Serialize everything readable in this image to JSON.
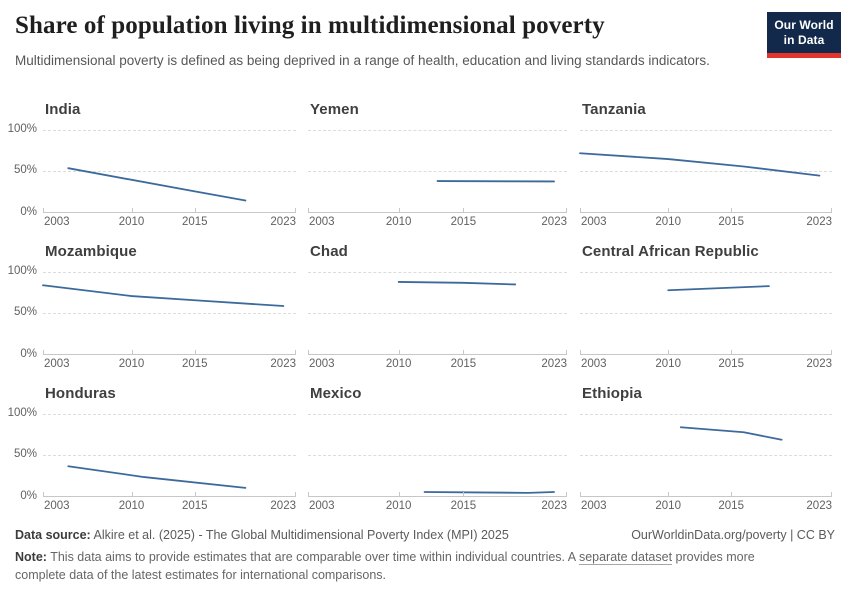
{
  "header": {
    "title": "Share of population living in multidimensional poverty",
    "subtitle": "Multidimensional poverty is defined as being deprived in a range of health, education and living standards indicators.",
    "logo_line1": "Our World",
    "logo_line2": "in Data",
    "logo_bg": "#12294b",
    "logo_accent": "#e0342c"
  },
  "chart_data": {
    "type": "line",
    "layout": "3x3 small multiples, one line series per panel",
    "x_range": [
      2003,
      2023
    ],
    "x_ticks": [
      2003,
      2010,
      2015,
      2023
    ],
    "x_tick_labels": [
      "2003",
      "2010",
      "2015",
      "2023"
    ],
    "y_range": [
      0,
      100
    ],
    "y_ticks": [
      0,
      50,
      100
    ],
    "y_axis": {
      "top": "100%",
      "mid": "50%",
      "bottom": "0%"
    },
    "grid": "dashed horizontal gridlines at 50% and 100%, solid axis at 0%",
    "legend": "none",
    "line_color": "#3d6a9c",
    "panels": [
      {
        "country": "India",
        "points": [
          [
            2005,
            54
          ],
          [
            2015,
            26
          ],
          [
            2019,
            15
          ]
        ]
      },
      {
        "country": "Yemen",
        "points": [
          [
            2013,
            38.5
          ],
          [
            2022,
            38
          ]
        ]
      },
      {
        "country": "Tanzania",
        "points": [
          [
            2003,
            72
          ],
          [
            2010,
            65
          ],
          [
            2016,
            56
          ],
          [
            2022,
            45
          ]
        ]
      },
      {
        "country": "Mozambique",
        "points": [
          [
            2003,
            84
          ],
          [
            2010,
            71
          ],
          [
            2015,
            66
          ],
          [
            2022,
            59
          ]
        ]
      },
      {
        "country": "Chad",
        "points": [
          [
            2010,
            88
          ],
          [
            2015,
            87
          ],
          [
            2019,
            85
          ]
        ]
      },
      {
        "country": "Central African Republic",
        "points": [
          [
            2010,
            78
          ],
          [
            2018,
            83
          ]
        ]
      },
      {
        "country": "Honduras",
        "points": [
          [
            2005,
            37
          ],
          [
            2011,
            24
          ],
          [
            2019,
            11
          ]
        ]
      },
      {
        "country": "Mexico",
        "points": [
          [
            2012,
            6
          ],
          [
            2016,
            5.5
          ],
          [
            2020,
            5
          ],
          [
            2022,
            6
          ]
        ]
      },
      {
        "country": "Ethiopia",
        "points": [
          [
            2011,
            84
          ],
          [
            2016,
            78
          ],
          [
            2019,
            69
          ]
        ]
      }
    ]
  },
  "footer": {
    "source_label": "Data source:",
    "source_text": "Alkire et al. (2025) - The Global Multidimensional Poverty Index (MPI) 2025",
    "link_right": "OurWorldinData.org/poverty | CC BY",
    "note_label": "Note:",
    "note_before": "This data aims to provide estimates that are comparable over time within individual countries. A ",
    "note_link": "separate dataset",
    "note_after": " provides more complete data of the latest estimates for international comparisons."
  }
}
